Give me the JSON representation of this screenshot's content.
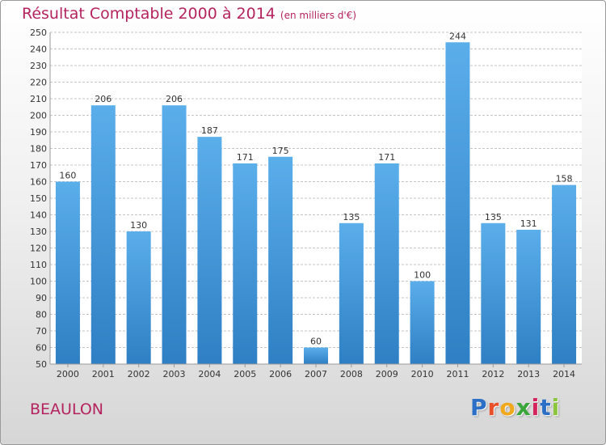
{
  "header": {
    "title": "Résultat Comptable 2000 à 2014",
    "subtitle": "(en milliers d'€)"
  },
  "footer": {
    "entity": "BEAULON",
    "logo_letters": [
      "P",
      "r",
      "o",
      "x",
      "i",
      "t",
      "i"
    ],
    "logo_colors": [
      "#2b6fc6",
      "#e8502a",
      "#f0a81c",
      "#3aa63a",
      "#d4245e",
      "#2b6fc6",
      "#8cc63f"
    ]
  },
  "colors": {
    "title": "#b5235e",
    "bar_light": "#5aaeea",
    "bar_dark": "#2f7fc4",
    "grid": "#c4c4c4",
    "axis_text": "#333333"
  },
  "chart_data": {
    "type": "bar",
    "categories": [
      "2000",
      "2001",
      "2002",
      "2003",
      "2004",
      "2005",
      "2006",
      "2007",
      "2008",
      "2009",
      "2010",
      "2011",
      "2012",
      "2013",
      "2014"
    ],
    "values": [
      160,
      206,
      130,
      206,
      187,
      171,
      175,
      60,
      135,
      171,
      100,
      244,
      135,
      131,
      158
    ],
    "ylim": [
      50,
      250
    ],
    "ytick_step": 10,
    "grid": true,
    "data_labels": true
  }
}
